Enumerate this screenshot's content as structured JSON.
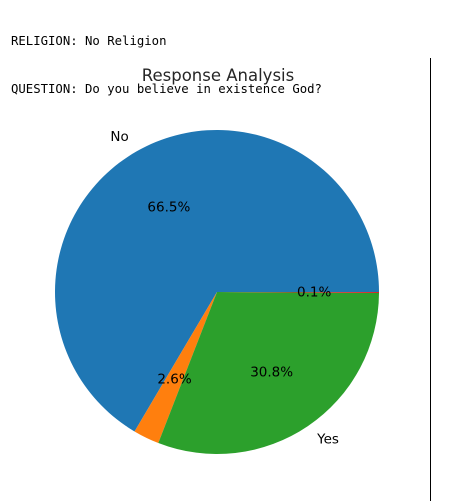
{
  "output": {
    "religion_line": "RELIGION: No Religion",
    "question_line": "QUESTION: Do you believe in existence God?"
  },
  "chart_data": {
    "type": "pie",
    "title": "Response Analysis",
    "slices": [
      {
        "label": "No",
        "value": 66.5,
        "pct_label": "66.5%",
        "color": "#1f77b4"
      },
      {
        "label": "",
        "value": 2.6,
        "pct_label": "2.6%",
        "color": "#ff7f0e"
      },
      {
        "label": "Yes",
        "value": 30.8,
        "pct_label": "30.8%",
        "color": "#2ca02c"
      },
      {
        "label": "",
        "value": 0.1,
        "pct_label": "0.1%",
        "color": "#d62728"
      }
    ],
    "start_angle_deg": 0,
    "direction": "counterclockwise",
    "legend": "none"
  }
}
